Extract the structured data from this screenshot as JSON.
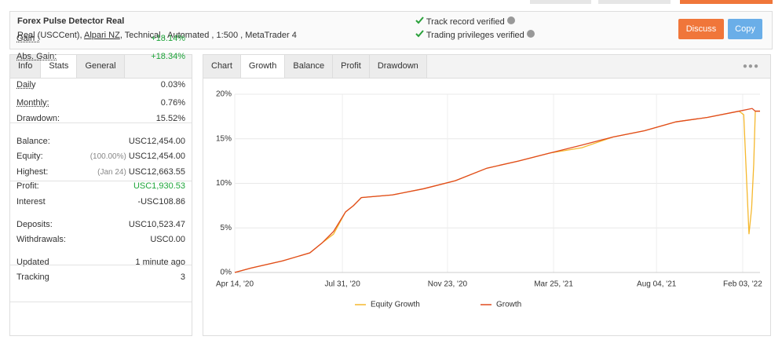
{
  "header": {
    "title": "Forex Pulse Detector Real",
    "subtitle_start": "Real (USCCent),",
    "broker": "Alpari NZ",
    "subtitle_end": ", Technical , Automated , 1:500 , MetaTrader 4",
    "verified": [
      "Track record verified",
      "Trading privileges verified"
    ],
    "buttons": [
      "Discuss",
      "Copy"
    ]
  },
  "left_tabs": {
    "items": [
      "Info",
      "Stats",
      "General"
    ],
    "active": 1
  },
  "stats": {
    "groups": [
      {
        "rows": [
          {
            "label": "Gain :",
            "value": "+18.14%",
            "color": "#1ea53a",
            "underline": true
          },
          {
            "label": "Abs. Gain:",
            "value": "+18.34%",
            "color": "#1ea53a",
            "underline": true
          }
        ]
      },
      {
        "rows": [
          {
            "label": "Daily",
            "value": "0.03%",
            "underline": true
          },
          {
            "label": "Monthly:",
            "value": "0.76%",
            "underline": true
          },
          {
            "label": "Drawdown:",
            "value": "15.52%"
          }
        ]
      },
      {
        "rows": [
          {
            "label": "Balance:",
            "value": "USC12,454.00"
          },
          {
            "label": "Equity:",
            "note": "(100.00%)",
            "value": "USC12,454.00"
          },
          {
            "label": "Highest:",
            "note": "(Jan 24)",
            "value": "USC12,663.55"
          },
          {
            "label": "Profit:",
            "value": "USC1,930.53",
            "color": "#1ea53a"
          },
          {
            "label": "Interest",
            "value": "-USC108.86"
          }
        ]
      },
      {
        "rows": [
          {
            "label": "Deposits:",
            "value": "USC10,523.47"
          },
          {
            "label": "Withdrawals:",
            "value": "USC0.00"
          }
        ]
      },
      {
        "rows": [
          {
            "label": "Updated",
            "value": "1 minute ago"
          },
          {
            "label": "Tracking",
            "value": "3"
          }
        ]
      }
    ]
  },
  "chart_tabs": {
    "items": [
      "Chart",
      "Growth",
      "Balance",
      "Profit",
      "Drawdown"
    ],
    "active": 1
  },
  "chart_data": {
    "type": "line",
    "grid": true,
    "xlim": [
      0,
      100
    ],
    "xticks": [
      {
        "value": 0,
        "label": "Apr 14, '20"
      },
      {
        "value": 20.5,
        "label": "Jul 31, '20"
      },
      {
        "value": 40.5,
        "label": "Nov 23, '20"
      },
      {
        "value": 60.7,
        "label": "Mar 25, '21"
      },
      {
        "value": 80.3,
        "label": "Aug 04, '21"
      },
      {
        "value": 96.7,
        "label": "Feb 03, '22"
      }
    ],
    "ylim": [
      0,
      20
    ],
    "yticks": [
      {
        "value": 0,
        "label": "0%"
      },
      {
        "value": 5,
        "label": "5%"
      },
      {
        "value": 10,
        "label": "10%"
      },
      {
        "value": 15,
        "label": "15%"
      },
      {
        "value": 20,
        "label": "20%"
      }
    ],
    "series": [
      {
        "name": "Equity Growth",
        "color": "#f5b82e",
        "x": [
          0,
          3.1,
          9.1,
          14.3,
          16.6,
          18.8,
          21.1,
          22.6,
          24.1,
          30,
          36,
          42,
          48,
          54,
          60,
          66.1,
          72,
          78,
          84,
          90,
          96,
          96.9,
          97.9,
          98.4,
          98.8,
          99.1,
          100
        ],
        "values": [
          0,
          0.5,
          1.3,
          2.2,
          3.3,
          4.3,
          6.8,
          7.5,
          8.4,
          8.7,
          9.4,
          10.3,
          11.7,
          12.5,
          13.4,
          14.0,
          15.2,
          15.9,
          16.9,
          17.4,
          18.1,
          17.7,
          4.3,
          7.2,
          12.1,
          18.1,
          18.1
        ]
      },
      {
        "name": "Growth",
        "color": "#e04a1f",
        "x": [
          0,
          3.1,
          9.1,
          14.3,
          16.6,
          18.8,
          21.1,
          22.6,
          24.1,
          30,
          36,
          42,
          48,
          54,
          60,
          66.1,
          72,
          78,
          84,
          90,
          96,
          98.5,
          99.1,
          100
        ],
        "values": [
          0,
          0.5,
          1.3,
          2.2,
          3.3,
          4.6,
          6.8,
          7.5,
          8.4,
          8.7,
          9.4,
          10.3,
          11.7,
          12.5,
          13.4,
          14.3,
          15.2,
          15.9,
          16.9,
          17.4,
          18.1,
          18.4,
          18.1,
          18.1
        ]
      }
    ]
  }
}
